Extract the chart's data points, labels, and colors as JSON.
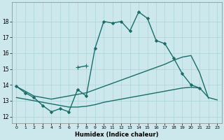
{
  "xlabel": "Humidex (Indice chaleur)",
  "background_color": "#cce8ed",
  "grid_color": "#b0d8de",
  "line_color": "#1a6e6a",
  "x_ticks": [
    0,
    1,
    2,
    3,
    4,
    5,
    6,
    7,
    8,
    9,
    10,
    11,
    12,
    13,
    14,
    15,
    16,
    17,
    18,
    19,
    20,
    21,
    22,
    23
  ],
  "y_ticks": [
    12,
    13,
    14,
    15,
    16,
    17,
    18
  ],
  "ylim": [
    11.6,
    19.2
  ],
  "xlim": [
    -0.5,
    23.5
  ],
  "series": [
    {
      "x": [
        0,
        1,
        2,
        3,
        4,
        5,
        6,
        7,
        8,
        9,
        10,
        11,
        12,
        13,
        14,
        15,
        16,
        17,
        18,
        19,
        20,
        21
      ],
      "y": [
        13.9,
        13.5,
        13.2,
        12.7,
        12.3,
        12.5,
        12.3,
        13.7,
        13.3,
        16.3,
        18.0,
        17.9,
        18.0,
        17.4,
        18.6,
        18.2,
        16.8,
        16.6,
        15.7,
        14.7,
        14.0,
        13.8
      ],
      "marker": "D",
      "markersize": 2.0,
      "linewidth": 1.0
    },
    {
      "x": [
        7,
        8
      ],
      "y": [
        15.1,
        15.2
      ],
      "marker": "+",
      "markersize": 4.0,
      "linewidth": 1.0
    },
    {
      "x": [
        0,
        1,
        2,
        3,
        4,
        5,
        6,
        7,
        8,
        9,
        10,
        11,
        12,
        13,
        14,
        15,
        16,
        17,
        18,
        19,
        20,
        21,
        22
      ],
      "y": [
        13.9,
        13.6,
        13.3,
        13.2,
        13.1,
        13.2,
        13.3,
        13.4,
        13.5,
        13.7,
        13.9,
        14.1,
        14.3,
        14.5,
        14.7,
        14.9,
        15.1,
        15.3,
        15.55,
        15.75,
        15.85,
        14.75,
        13.15
      ],
      "marker": null,
      "markersize": 0,
      "linewidth": 1.0
    },
    {
      "x": [
        0,
        1,
        2,
        3,
        4,
        5,
        6,
        7,
        8,
        9,
        10,
        11,
        12,
        13,
        14,
        15,
        16,
        17,
        18,
        19,
        20,
        21,
        22,
        23
      ],
      "y": [
        13.2,
        13.1,
        13.0,
        12.9,
        12.8,
        12.7,
        12.6,
        12.6,
        12.65,
        12.75,
        12.9,
        13.0,
        13.1,
        13.2,
        13.3,
        13.4,
        13.5,
        13.6,
        13.7,
        13.8,
        13.85,
        13.8,
        13.2,
        13.05
      ],
      "marker": null,
      "markersize": 0,
      "linewidth": 1.0
    }
  ]
}
